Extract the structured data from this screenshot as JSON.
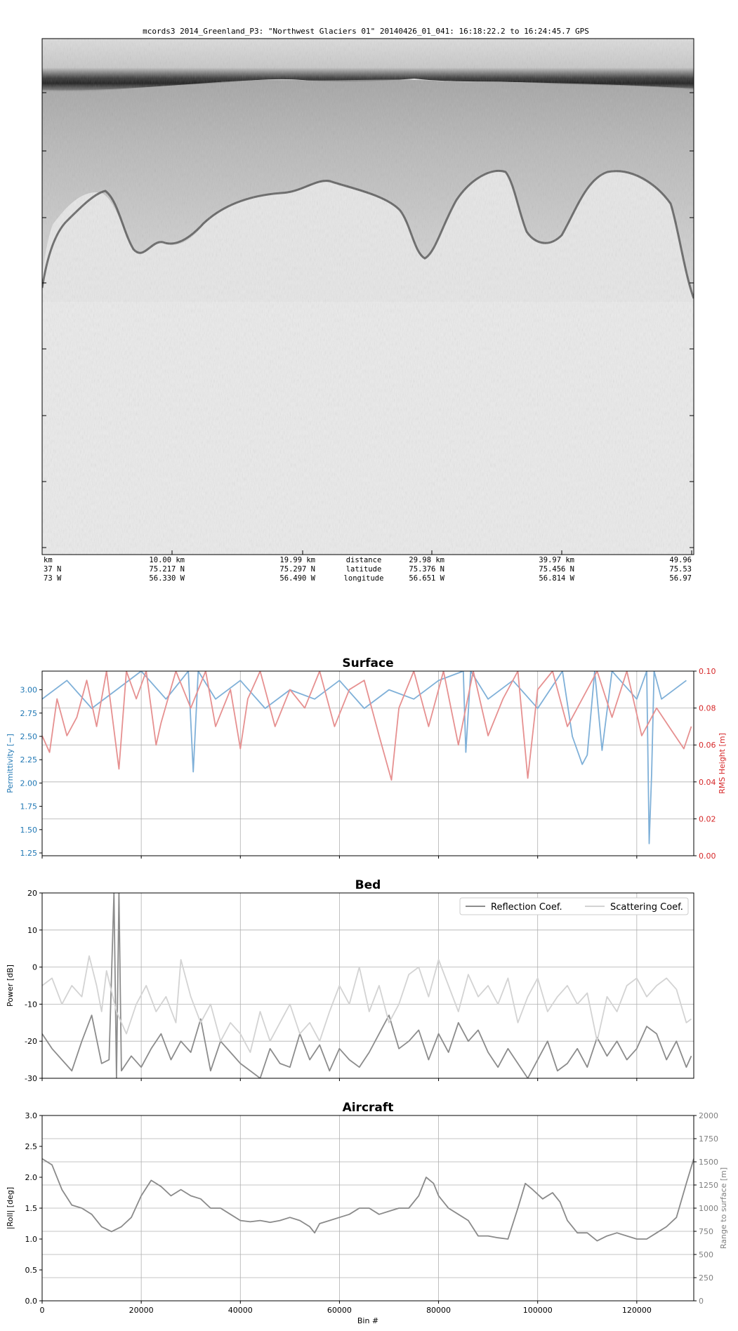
{
  "radargram": {
    "title": "mcords3 2014_Greenland_P3: \"Northwest Glaciers 01\"  20140426_01_041: 16:18:22.2 to 16:24:45.7 GPS",
    "row_labels": [
      "distance",
      "latitude",
      "longitude"
    ],
    "columns": [
      {
        "distance": "km",
        "latitude": "37 N",
        "longitude": "73 W"
      },
      {
        "distance": "10.00 km",
        "latitude": "75.217 N",
        "longitude": "56.330 W"
      },
      {
        "distance": "19.99 km",
        "latitude": "75.297 N",
        "longitude": "56.490 W"
      },
      {
        "distance": "29.98 km",
        "latitude": "75.376 N",
        "longitude": "56.651 W"
      },
      {
        "distance": "39.97 km",
        "latitude": "75.456 N",
        "longitude": "56.814 W"
      },
      {
        "distance": "49.96",
        "latitude": "75.53",
        "longitude": "56.97"
      }
    ]
  },
  "chart_data": [
    {
      "type": "line",
      "title": "Surface",
      "xlabel": "",
      "ylabel": "Permittivity [−]",
      "ylabel_right": "RMS Height [m]",
      "xlim": [
        0,
        131500
      ],
      "ylim": [
        1.22,
        3.2
      ],
      "ylim_right": [
        0,
        0.1
      ],
      "yticks": [
        1.25,
        1.5,
        1.75,
        2.0,
        2.25,
        2.5,
        2.75,
        3.0
      ],
      "yticks_right": [
        0.0,
        0.02,
        0.04,
        0.06,
        0.08,
        0.1
      ],
      "grid": true,
      "series": [
        {
          "axis": "left",
          "color": "#7fb0d8",
          "x": [
            0,
            5000,
            10000,
            15000,
            20000,
            25000,
            29500,
            30500,
            31500,
            35000,
            40000,
            45000,
            50000,
            55000,
            60000,
            65000,
            70000,
            75000,
            80000,
            85000,
            85500,
            86500,
            90000,
            95000,
            100000,
            105000,
            107000,
            109000,
            110000,
            111500,
            113000,
            115000,
            120000,
            122000,
            122500,
            123000,
            123500,
            125000,
            130000
          ],
          "values": [
            2.9,
            3.1,
            2.8,
            3.0,
            3.2,
            2.9,
            3.2,
            2.12,
            3.2,
            2.9,
            3.1,
            2.8,
            3.0,
            2.9,
            3.1,
            2.8,
            3.0,
            2.9,
            3.1,
            3.2,
            2.33,
            3.2,
            2.9,
            3.1,
            2.8,
            3.2,
            2.5,
            2.2,
            2.3,
            3.2,
            2.35,
            3.2,
            2.9,
            3.2,
            1.35,
            2.1,
            3.2,
            2.9,
            3.1
          ]
        },
        {
          "axis": "right",
          "color": "#e69090",
          "x": [
            0,
            1500,
            3000,
            5000,
            7000,
            9000,
            11000,
            13000,
            15500,
            17000,
            19000,
            21000,
            23000,
            24000,
            27000,
            30000,
            33000,
            35000,
            38000,
            40000,
            41500,
            44000,
            47000,
            50000,
            53000,
            56000,
            59000,
            62000,
            65000,
            68000,
            70500,
            72000,
            75000,
            78000,
            81000,
            84000,
            87000,
            90000,
            93000,
            96000,
            98000,
            100000,
            103000,
            106000,
            109000,
            112000,
            115000,
            118000,
            121000,
            124000,
            127000,
            129500,
            131000
          ],
          "values": [
            0.065,
            0.056,
            0.085,
            0.065,
            0.075,
            0.095,
            0.07,
            0.1,
            0.047,
            0.1,
            0.085,
            0.1,
            0.06,
            0.072,
            0.1,
            0.08,
            0.1,
            0.07,
            0.09,
            0.058,
            0.085,
            0.1,
            0.07,
            0.09,
            0.08,
            0.1,
            0.07,
            0.09,
            0.095,
            0.065,
            0.041,
            0.08,
            0.1,
            0.07,
            0.1,
            0.06,
            0.1,
            0.065,
            0.085,
            0.1,
            0.042,
            0.09,
            0.1,
            0.07,
            0.085,
            0.1,
            0.075,
            0.1,
            0.065,
            0.08,
            0.068,
            0.058,
            0.07
          ]
        }
      ]
    },
    {
      "type": "line",
      "title": "Bed",
      "xlabel": "",
      "ylabel": "Power [dB]",
      "xlim": [
        0,
        131500
      ],
      "ylim": [
        -30,
        20
      ],
      "yticks": [
        -30,
        -20,
        -10,
        0,
        10,
        20
      ],
      "grid": true,
      "legend_position": "top-right",
      "series": [
        {
          "name": "Reflection Coef.",
          "color": "#8c8c8c",
          "x": [
            0,
            2000,
            4000,
            6000,
            8000,
            10000,
            12000,
            13500,
            14500,
            15000,
            15500,
            16000,
            18000,
            20000,
            22000,
            24000,
            26000,
            28000,
            30000,
            32000,
            34000,
            36000,
            38000,
            40000,
            42000,
            44000,
            46000,
            48000,
            50000,
            52000,
            54000,
            56000,
            58000,
            60000,
            62000,
            64000,
            66000,
            68000,
            70000,
            72000,
            74000,
            76000,
            78000,
            80000,
            82000,
            84000,
            86000,
            88000,
            90000,
            92000,
            94000,
            96000,
            98000,
            100000,
            102000,
            104000,
            106000,
            108000,
            110000,
            112000,
            114000,
            116000,
            118000,
            120000,
            122000,
            124000,
            126000,
            128000,
            130000,
            131000
          ],
          "values": [
            -18,
            -22,
            -25,
            -28,
            -20,
            -13,
            -26,
            -25,
            20,
            -30,
            20,
            -28,
            -24,
            -27,
            -22,
            -18,
            -25,
            -20,
            -23,
            -14,
            -28,
            -20,
            -23,
            -26,
            -28,
            -30,
            -22,
            -26,
            -27,
            -18,
            -25,
            -21,
            -28,
            -22,
            -25,
            -27,
            -23,
            -18,
            -13,
            -22,
            -20,
            -17,
            -25,
            -18,
            -23,
            -15,
            -20,
            -17,
            -23,
            -27,
            -22,
            -26,
            -30,
            -25,
            -20,
            -28,
            -26,
            -22,
            -27,
            -19,
            -24,
            -20,
            -25,
            -22,
            -16,
            -18,
            -25,
            -20,
            -27,
            -24
          ]
        },
        {
          "name": "Scattering Coef.",
          "color": "#d3d3d3",
          "x": [
            0,
            2000,
            4000,
            6000,
            8000,
            9500,
            11000,
            12000,
            13000,
            15000,
            17000,
            19000,
            21000,
            23000,
            25000,
            27000,
            28000,
            30000,
            32000,
            34000,
            36000,
            38000,
            40000,
            42000,
            44000,
            46000,
            48000,
            50000,
            52000,
            54000,
            56000,
            58000,
            60000,
            62000,
            64000,
            66000,
            68000,
            70000,
            72000,
            74000,
            76000,
            78000,
            80000,
            82000,
            84000,
            86000,
            88000,
            90000,
            92000,
            94000,
            96000,
            98000,
            100000,
            102000,
            104000,
            106000,
            108000,
            110000,
            112000,
            114000,
            116000,
            118000,
            120000,
            122000,
            124000,
            126000,
            128000,
            130000,
            131000
          ],
          "values": [
            -5,
            -3,
            -10,
            -5,
            -8,
            3,
            -5,
            -12,
            -1,
            -12,
            -18,
            -10,
            -5,
            -12,
            -8,
            -15,
            2,
            -8,
            -15,
            -10,
            -20,
            -15,
            -18,
            -23,
            -12,
            -20,
            -15,
            -10,
            -18,
            -15,
            -20,
            -12,
            -5,
            -10,
            0,
            -12,
            -5,
            -15,
            -10,
            -2,
            0,
            -8,
            2,
            -5,
            -12,
            -2,
            -8,
            -5,
            -10,
            -3,
            -15,
            -8,
            -3,
            -12,
            -8,
            -5,
            -10,
            -7,
            -20,
            -8,
            -12,
            -5,
            -3,
            -8,
            -5,
            -3,
            -6,
            -15,
            -14
          ]
        }
      ]
    },
    {
      "type": "line",
      "title": "Aircraft",
      "xlabel": "Bin #",
      "ylabel": "|Roll| [deg]",
      "ylabel_right": "Range to surface [m]",
      "xlim": [
        0,
        131500
      ],
      "ylim": [
        0,
        3.0
      ],
      "ylim_right": [
        0,
        2000
      ],
      "xticks": [
        0,
        20000,
        40000,
        60000,
        80000,
        100000,
        120000
      ],
      "yticks": [
        0.0,
        0.5,
        1.0,
        1.5,
        2.0,
        2.5,
        3.0
      ],
      "yticks_right": [
        0,
        250,
        500,
        750,
        1000,
        1250,
        1500,
        1750,
        2000
      ],
      "grid": true,
      "series": [
        {
          "axis": "left",
          "color": "#8a8a8a",
          "x": [
            0,
            2000,
            4000,
            6000,
            8000,
            10000,
            12000,
            14000,
            16000,
            18000,
            20000,
            22000,
            24000,
            26000,
            28000,
            30000,
            32000,
            34000,
            36000,
            38000,
            40000,
            42000,
            44000,
            46000,
            48000,
            50000,
            52000,
            54000,
            55000,
            56000,
            58000,
            60000,
            62000,
            64000,
            66000,
            68000,
            70000,
            72000,
            74000,
            76000,
            77500,
            79000,
            80000,
            82000,
            84000,
            86000,
            88000,
            90000,
            92000,
            94000,
            96000,
            97500,
            99000,
            101000,
            103000,
            104500,
            106000,
            108000,
            110000,
            112000,
            114000,
            116000,
            118000,
            120000,
            122000,
            124000,
            126000,
            128000,
            130000,
            131500
          ],
          "values": [
            2.3,
            2.2,
            1.8,
            1.55,
            1.5,
            1.4,
            1.2,
            1.12,
            1.2,
            1.35,
            1.7,
            1.95,
            1.85,
            1.7,
            1.8,
            1.7,
            1.65,
            1.5,
            1.5,
            1.4,
            1.3,
            1.28,
            1.3,
            1.27,
            1.3,
            1.35,
            1.3,
            1.2,
            1.1,
            1.25,
            1.3,
            1.35,
            1.4,
            1.5,
            1.5,
            1.4,
            1.45,
            1.5,
            1.5,
            1.7,
            2.0,
            1.9,
            1.7,
            1.5,
            1.4,
            1.3,
            1.05,
            1.05,
            1.02,
            1.0,
            1.5,
            1.9,
            1.8,
            1.65,
            1.75,
            1.6,
            1.3,
            1.1,
            1.1,
            0.97,
            1.05,
            1.1,
            1.05,
            1.0,
            1.0,
            1.1,
            1.2,
            1.35,
            1.9,
            2.3
          ]
        }
      ]
    }
  ]
}
